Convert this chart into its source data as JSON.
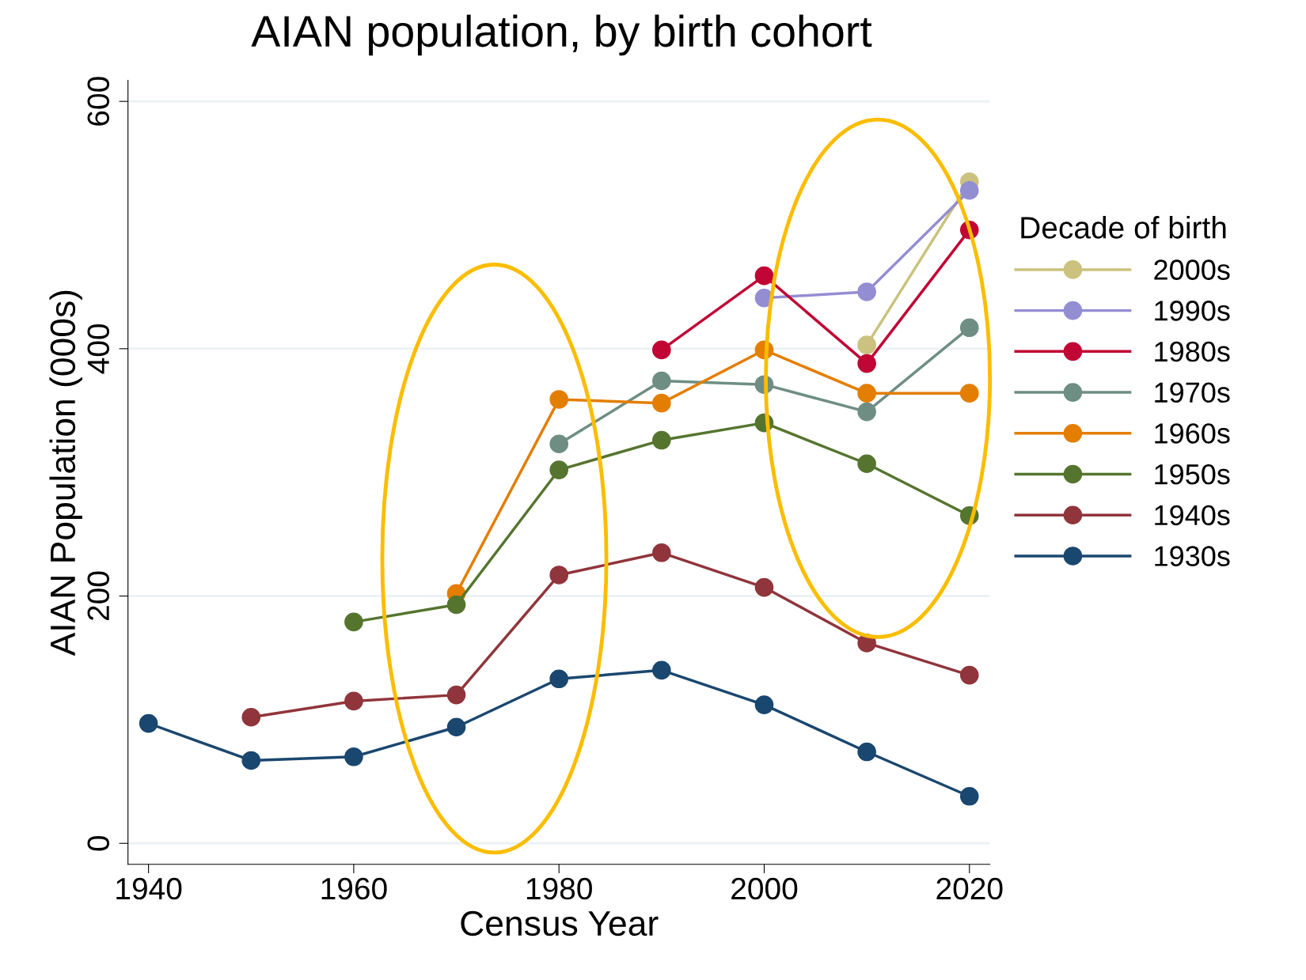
{
  "chart_data": {
    "type": "line",
    "title": "AIAN population, by birth cohort",
    "xlabel": "Census Year",
    "ylabel": "AIAN Population (000s)",
    "legend_title": "Decade of birth",
    "x": [
      1940,
      1950,
      1960,
      1970,
      1980,
      1990,
      2000,
      2010,
      2020
    ],
    "series": [
      {
        "name": "2000s",
        "color": "#cac27e",
        "values": [
          null,
          null,
          null,
          null,
          null,
          null,
          null,
          403,
          535
        ]
      },
      {
        "name": "1990s",
        "color": "#938dd2",
        "values": [
          null,
          null,
          null,
          null,
          null,
          null,
          441,
          446,
          528
        ]
      },
      {
        "name": "1980s",
        "color": "#c10534",
        "values": [
          null,
          null,
          null,
          null,
          null,
          399,
          459,
          388,
          496
        ]
      },
      {
        "name": "1970s",
        "color": "#6e8e84",
        "values": [
          null,
          null,
          null,
          null,
          323,
          374,
          371,
          349,
          417
        ]
      },
      {
        "name": "1960s",
        "color": "#e37e00",
        "values": [
          null,
          null,
          null,
          202,
          359,
          356,
          399,
          364,
          364
        ]
      },
      {
        "name": "1950s",
        "color": "#55752f",
        "values": [
          null,
          null,
          179,
          193,
          302,
          326,
          340,
          307,
          265
        ]
      },
      {
        "name": "1940s",
        "color": "#90353b",
        "values": [
          null,
          102,
          115,
          120,
          217,
          235,
          207,
          162,
          136
        ]
      },
      {
        "name": "1930s",
        "color": "#1a476f",
        "values": [
          97,
          67,
          70,
          94,
          133,
          140,
          112,
          74,
          38
        ]
      }
    ],
    "xlim": [
      1938,
      2022
    ],
    "ylim": [
      -17,
      617
    ],
    "xticks": [
      1940,
      1960,
      1980,
      2000,
      2020
    ],
    "yticks": [
      0,
      200,
      400,
      600
    ],
    "grid": "y",
    "legend": "right",
    "marker": "circle",
    "line_style": "solid"
  }
}
